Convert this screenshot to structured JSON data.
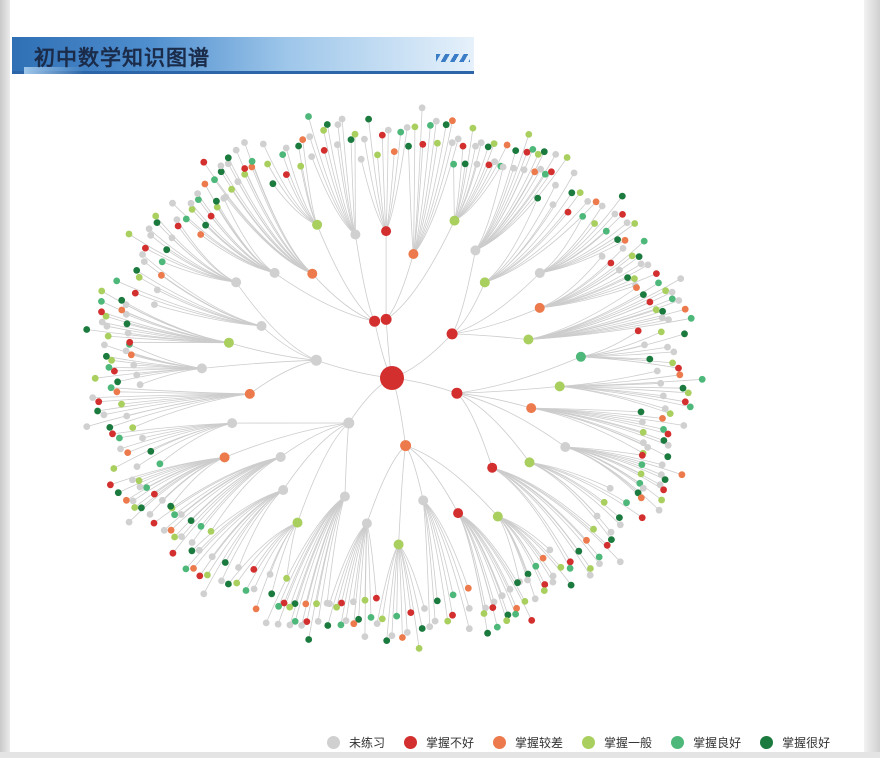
{
  "title": "初中数学知识图谱",
  "legend": [
    {
      "label": "未练习",
      "color": "#d0d0d0"
    },
    {
      "label": "掌握不好",
      "color": "#d32f2f"
    },
    {
      "label": "掌握较差",
      "color": "#ec7a4c"
    },
    {
      "label": "掌握一般",
      "color": "#a9cf5e"
    },
    {
      "label": "掌握良好",
      "color": "#4db879"
    },
    {
      "label": "掌握很好",
      "color": "#1b7a3d"
    }
  ],
  "colors": {
    "link": "#cccccc",
    "root": "#e8221b"
  },
  "graph": {
    "root_status": 1,
    "level1_status": [
      1,
      1,
      1,
      2,
      0,
      0,
      1
    ],
    "level2_status": [
      1,
      2,
      3,
      0,
      3,
      0,
      2,
      3,
      4,
      3,
      2,
      0,
      3,
      1,
      3,
      1,
      0,
      3,
      0,
      0,
      3,
      0,
      0,
      2,
      0,
      2,
      0,
      3,
      0,
      0,
      0,
      2,
      3,
      0
    ],
    "level3_status_pattern": [
      0,
      0,
      5,
      3,
      1,
      0,
      2,
      4,
      0,
      5,
      3,
      0,
      1,
      4,
      0,
      3,
      5,
      2,
      0,
      0,
      4,
      1,
      3,
      5,
      0
    ]
  }
}
